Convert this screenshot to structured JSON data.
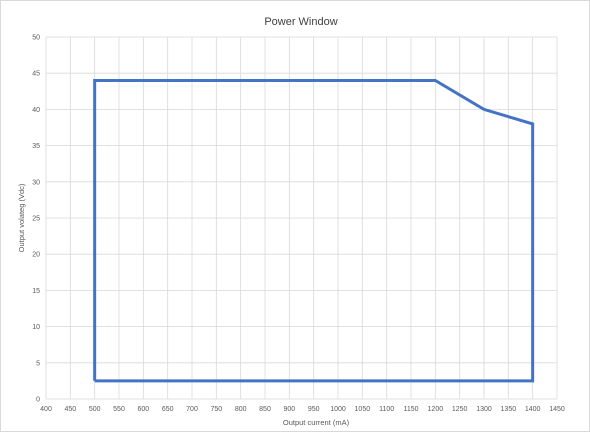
{
  "chart_data": {
    "type": "line",
    "title": "Power Window",
    "xlabel": "Output current (mA)",
    "ylabel": "Output  volateg (Vdc)",
    "xlim": [
      400,
      1450
    ],
    "ylim": [
      0,
      50
    ],
    "x_ticks": [
      400,
      450,
      500,
      550,
      600,
      650,
      700,
      750,
      800,
      850,
      900,
      950,
      1000,
      1050,
      1100,
      1150,
      1200,
      1250,
      1300,
      1350,
      1400,
      1450
    ],
    "y_ticks": [
      0,
      5,
      10,
      15,
      20,
      25,
      30,
      35,
      40,
      45,
      50
    ],
    "grid": true,
    "legend": "none",
    "series": [
      {
        "color": "#4472c4",
        "x": [
          500,
          500,
          1200,
          1300,
          1400,
          1400,
          500
        ],
        "y": [
          2.5,
          44,
          44,
          40,
          38,
          2.5,
          2.5
        ]
      }
    ]
  }
}
